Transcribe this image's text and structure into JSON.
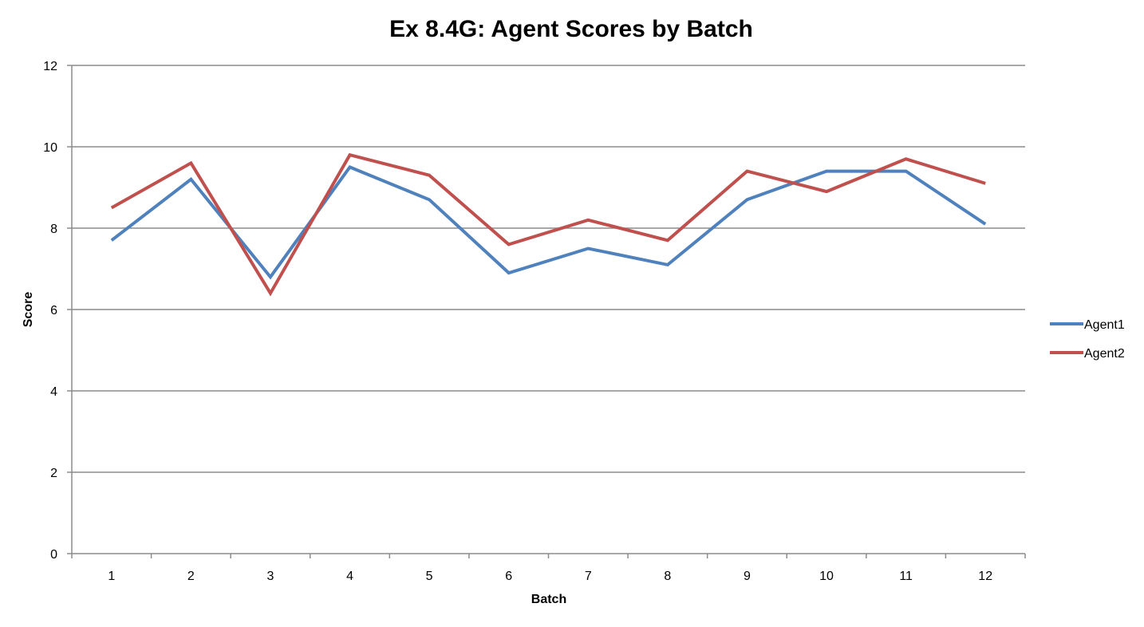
{
  "chart_data": {
    "type": "line",
    "title": "Ex 8.4G: Agent Scores by Batch",
    "xlabel": "Batch",
    "ylabel": "Score",
    "categories": [
      "1",
      "2",
      "3",
      "4",
      "5",
      "6",
      "7",
      "8",
      "9",
      "10",
      "11",
      "12"
    ],
    "ylim": [
      0,
      12
    ],
    "yticks": [
      "0",
      "2",
      "4",
      "6",
      "8",
      "10",
      "12"
    ],
    "grid": true,
    "legend_position": "right",
    "series": [
      {
        "name": "Agent1",
        "color": "#4f81bd",
        "values": [
          7.7,
          9.2,
          6.8,
          9.5,
          8.7,
          6.9,
          7.5,
          7.1,
          8.7,
          9.4,
          9.4,
          8.1
        ]
      },
      {
        "name": "Agent2",
        "color": "#c0504d",
        "values": [
          8.5,
          9.6,
          6.4,
          9.8,
          9.3,
          7.6,
          8.2,
          7.7,
          9.4,
          8.9,
          9.7,
          9.1
        ]
      }
    ]
  }
}
